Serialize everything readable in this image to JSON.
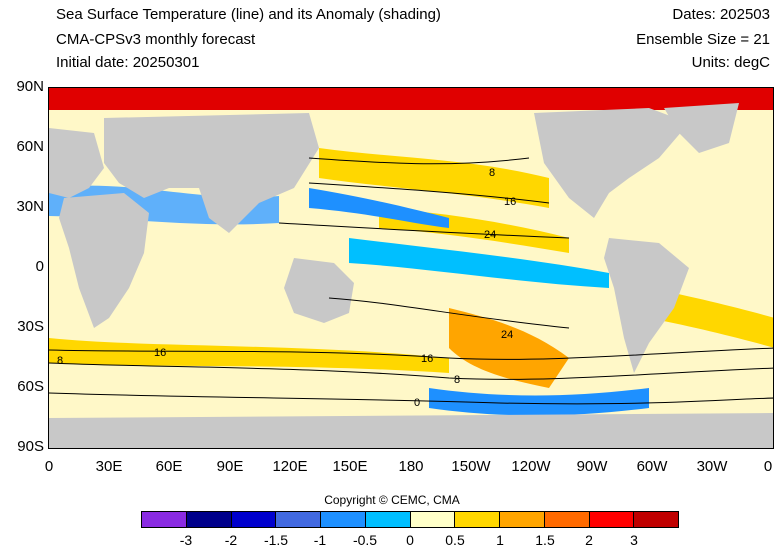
{
  "header": {
    "title": "Sea Surface Temperature (line) and its Anomaly (shading)",
    "subtitle": "CMA-CPSv3 monthly forecast",
    "initial_date": "Initial date: 20250301",
    "dates": "Dates: 202503",
    "ensemble": "Ensemble Size = 21",
    "units": "Units: degC"
  },
  "map": {
    "lat_labels": [
      "90N",
      "60N",
      "30N",
      "0",
      "30S",
      "60S",
      "90S"
    ],
    "lon_labels": [
      "0",
      "30E",
      "60E",
      "90E",
      "120E",
      "150E",
      "180",
      "150W",
      "120W",
      "90W",
      "60W",
      "30W",
      "0"
    ],
    "contour_labels": [
      "8",
      "16",
      "24",
      "24",
      "16",
      "8",
      "8",
      "16",
      "0"
    ],
    "land_color": "#c8c8c8"
  },
  "copyright": "Copyright © CEMC, CMA",
  "colorbar": {
    "colors": [
      "#8a2be2",
      "#00008b",
      "#0000cd",
      "#4169e1",
      "#1e90ff",
      "#00bfff",
      "#ffffc8",
      "#ffd700",
      "#ffa500",
      "#ff6a00",
      "#ff0000",
      "#c00000"
    ],
    "labels": [
      "-3",
      "-2",
      "-1.5",
      "-1",
      "-0.5",
      "0",
      "0.5",
      "1",
      "1.5",
      "2",
      "3"
    ]
  }
}
